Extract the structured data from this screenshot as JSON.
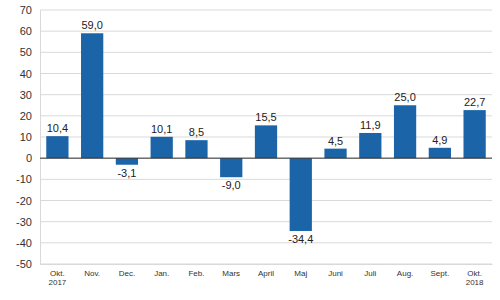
{
  "chart_data": {
    "type": "bar",
    "categories": [
      "Okt.\n2017",
      "Nov.",
      "Dec.",
      "Jan.",
      "Feb.",
      "Mars",
      "April",
      "Maj",
      "Juni",
      "Juli",
      "Aug.",
      "Sept.",
      "Okt.\n2018"
    ],
    "values": [
      10.4,
      59.0,
      -3.1,
      10.1,
      8.5,
      -9.0,
      15.5,
      -34.4,
      4.5,
      11.9,
      25.0,
      4.9,
      22.7
    ],
    "value_labels": [
      "10,4",
      "59,0",
      "-3,1",
      "10,1",
      "8,5",
      "-9,0",
      "15,5",
      "-34,4",
      "4,5",
      "11,9",
      "25,0",
      "4,9",
      "22,7"
    ],
    "data_labels": true,
    "color": "#1b64a8",
    "ylim": [
      -50,
      70
    ],
    "yticks": [
      -50,
      -40,
      -30,
      -20,
      -10,
      0,
      10,
      20,
      30,
      40,
      50,
      60,
      70
    ],
    "grid": true
  }
}
